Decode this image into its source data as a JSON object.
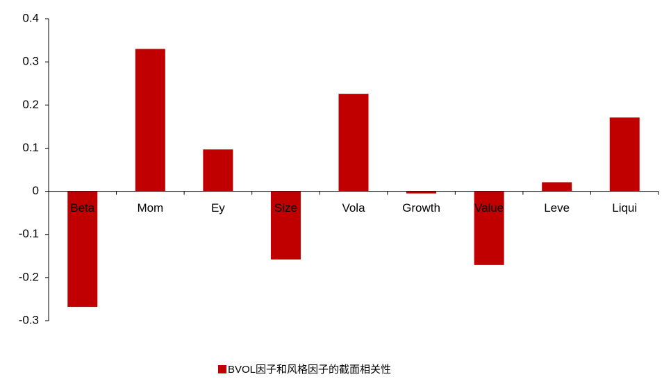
{
  "chart_data": {
    "type": "bar",
    "categories": [
      "Beta",
      "Mom",
      "Ey",
      "Size",
      "Vola",
      "Growth",
      "Value",
      "Leve",
      "Liqui"
    ],
    "series": [
      {
        "name": "BVOL因子和风格因子的截面相关性",
        "color": "#c00000",
        "values": [
          -0.268,
          0.33,
          0.097,
          -0.158,
          0.226,
          -0.005,
          -0.171,
          0.021,
          0.171
        ]
      }
    ],
    "ylim": [
      -0.3,
      0.4
    ],
    "yticks": [
      -0.3,
      -0.2,
      -0.1,
      0,
      0.1,
      0.2,
      0.3,
      0.4
    ],
    "grid": false,
    "legend": "bottom"
  }
}
